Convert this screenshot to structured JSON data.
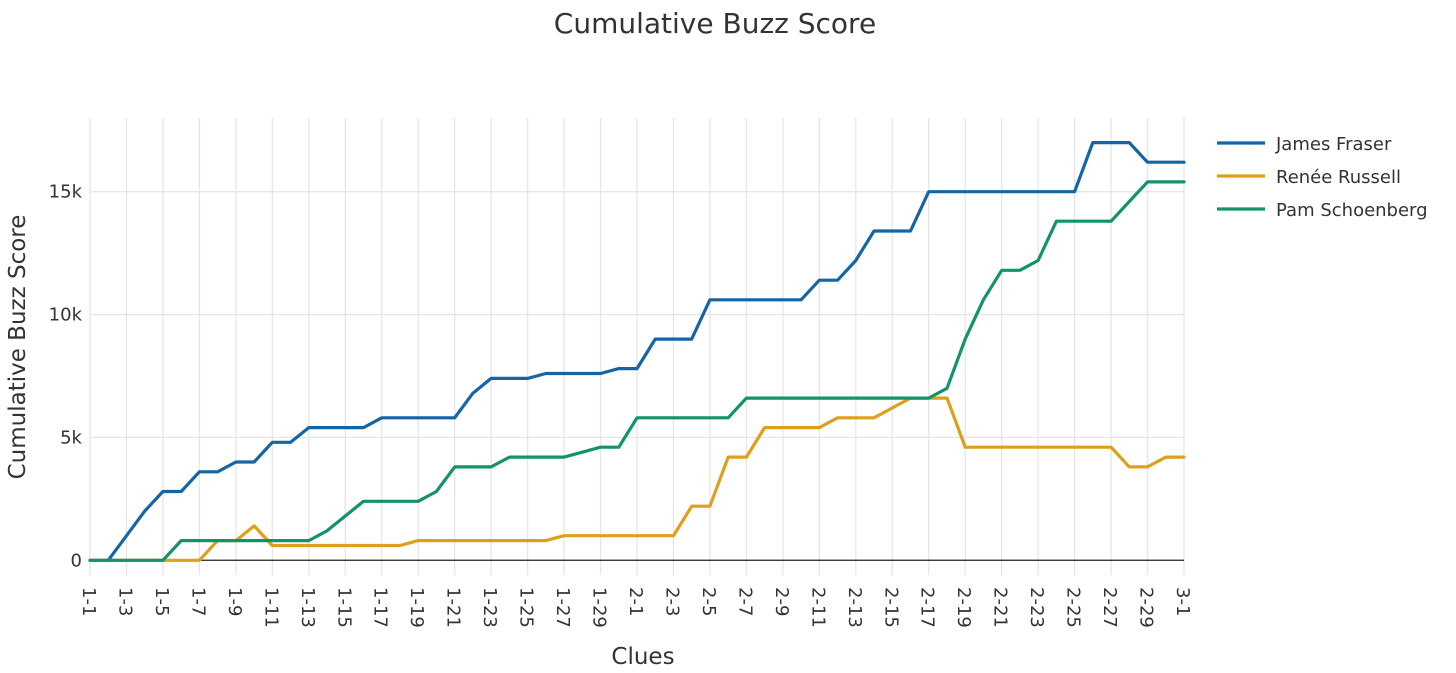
{
  "chart_data": {
    "type": "line",
    "title": "Cumulative Buzz Score",
    "xlabel": "Clues",
    "ylabel": "Cumulative Buzz Score",
    "x": [
      "1-1",
      "1-2",
      "1-3",
      "1-4",
      "1-5",
      "1-6",
      "1-7",
      "1-8",
      "1-9",
      "1-10",
      "1-11",
      "1-12",
      "1-13",
      "1-14",
      "1-15",
      "1-16",
      "1-17",
      "1-18",
      "1-19",
      "1-20",
      "1-21",
      "1-22",
      "1-23",
      "1-24",
      "1-25",
      "1-26",
      "1-27",
      "1-28",
      "1-29",
      "1-30",
      "2-1",
      "2-2",
      "2-3",
      "2-4",
      "2-5",
      "2-6",
      "2-7",
      "2-8",
      "2-9",
      "2-10",
      "2-11",
      "2-12",
      "2-13",
      "2-14",
      "2-15",
      "2-16",
      "2-17",
      "2-18",
      "2-19",
      "2-20",
      "2-21",
      "2-22",
      "2-23",
      "2-24",
      "2-25",
      "2-26",
      "2-27",
      "2-28",
      "2-29",
      "2-30",
      "3-1"
    ],
    "x_tick_labels": [
      "1-1",
      "1-3",
      "1-5",
      "1-7",
      "1-9",
      "1-11",
      "1-13",
      "1-15",
      "1-17",
      "1-19",
      "1-21",
      "1-23",
      "1-25",
      "1-27",
      "1-29",
      "2-1",
      "2-3",
      "2-5",
      "2-7",
      "2-9",
      "2-11",
      "2-13",
      "2-15",
      "2-17",
      "2-19",
      "2-21",
      "2-23",
      "2-25",
      "2-27",
      "2-29",
      "3-1"
    ],
    "y_ticks": [
      0,
      5000,
      10000,
      15000
    ],
    "y_tick_labels": [
      "0",
      "5k",
      "10k",
      "15k"
    ],
    "ylim": [
      -600,
      18000
    ],
    "grid": true,
    "legend_position": "top-right, outside plot",
    "series": [
      {
        "name": "James Fraser",
        "color": "#1565a5",
        "values": [
          0,
          0,
          1000,
          2000,
          2800,
          2800,
          3600,
          3600,
          4000,
          4000,
          4800,
          4800,
          5400,
          5400,
          5400,
          5400,
          5800,
          5800,
          5800,
          5800,
          5800,
          6800,
          7400,
          7400,
          7400,
          7600,
          7600,
          7600,
          7600,
          7800,
          7800,
          9000,
          9000,
          9000,
          10600,
          10600,
          10600,
          10600,
          10600,
          10600,
          11400,
          11400,
          12200,
          13400,
          13400,
          13400,
          15000,
          15000,
          15000,
          15000,
          15000,
          15000,
          15000,
          15000,
          15000,
          17000,
          17000,
          17000,
          16200,
          16200,
          16200
        ]
      },
      {
        "name": "Renée Russell",
        "color": "#e09f1a",
        "values": [
          0,
          0,
          0,
          0,
          0,
          0,
          0,
          800,
          800,
          1400,
          600,
          600,
          600,
          600,
          600,
          600,
          600,
          600,
          800,
          800,
          800,
          800,
          800,
          800,
          800,
          800,
          1000,
          1000,
          1000,
          1000,
          1000,
          1000,
          1000,
          2200,
          2200,
          4200,
          4200,
          5400,
          5400,
          5400,
          5400,
          5800,
          5800,
          5800,
          6200,
          6600,
          6600,
          6600,
          4600,
          4600,
          4600,
          4600,
          4600,
          4600,
          4600,
          4600,
          4600,
          3800,
          3800,
          4200,
          4200
        ]
      },
      {
        "name": "Pam Schoenberg",
        "color": "#12936a",
        "values": [
          0,
          0,
          0,
          0,
          0,
          800,
          800,
          800,
          800,
          800,
          800,
          800,
          800,
          1200,
          1800,
          2400,
          2400,
          2400,
          2400,
          2800,
          3800,
          3800,
          3800,
          4200,
          4200,
          4200,
          4200,
          4400,
          4600,
          4600,
          5800,
          5800,
          5800,
          5800,
          5800,
          5800,
          6600,
          6600,
          6600,
          6600,
          6600,
          6600,
          6600,
          6600,
          6600,
          6600,
          6600,
          7000,
          9000,
          10600,
          11800,
          11800,
          12200,
          13800,
          13800,
          13800,
          13800,
          14600,
          15400,
          15400,
          15400
        ]
      }
    ]
  }
}
